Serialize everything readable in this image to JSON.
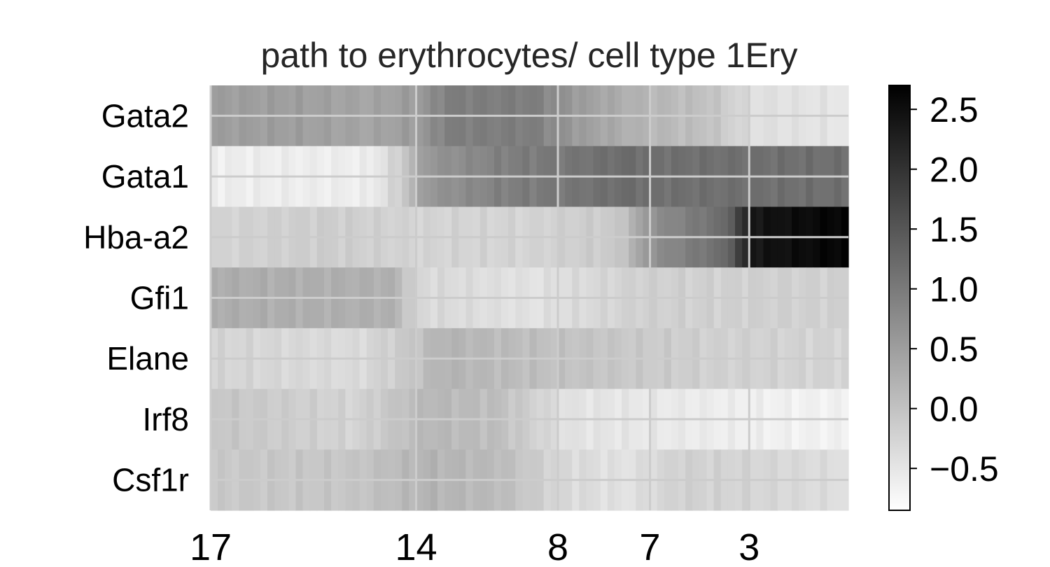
{
  "chart_data": {
    "type": "heatmap",
    "title": "path to erythrocytes/ cell type 1Ery",
    "colormap": [
      "#ffffff",
      "#000000"
    ],
    "vmin": -0.85,
    "vmax": 2.7,
    "genes": [
      "Gata2",
      "Gata1",
      "Hba-a2",
      "Gfi1",
      "Elane",
      "Irf8",
      "Csf1r"
    ],
    "x_ticks": [
      "17",
      "14",
      "8",
      "7",
      "3"
    ],
    "x_tick_positions": [
      0,
      29,
      49,
      62,
      76
    ],
    "n_columns": 90,
    "profiles": [
      [
        [
          0,
          0.5
        ],
        [
          10,
          0.5
        ],
        [
          22,
          0.4
        ],
        [
          29,
          0.55
        ],
        [
          33,
          0.95
        ],
        [
          45,
          0.95
        ],
        [
          52,
          0.5
        ],
        [
          60,
          0.2
        ],
        [
          70,
          0.0
        ],
        [
          76,
          -0.4
        ],
        [
          89,
          -0.5
        ]
      ],
      [
        [
          0,
          -0.6
        ],
        [
          22,
          -0.6
        ],
        [
          26,
          -0.2
        ],
        [
          30,
          0.6
        ],
        [
          42,
          0.95
        ],
        [
          50,
          1.05
        ],
        [
          58,
          1.2
        ],
        [
          62,
          1.15
        ],
        [
          70,
          1.15
        ],
        [
          89,
          1.15
        ]
      ],
      [
        [
          0,
          -0.25
        ],
        [
          15,
          -0.15
        ],
        [
          29,
          -0.25
        ],
        [
          45,
          -0.25
        ],
        [
          57,
          -0.1
        ],
        [
          62,
          0.7
        ],
        [
          72,
          1.2
        ],
        [
          76,
          2.4
        ],
        [
          89,
          2.65
        ]
      ],
      [
        [
          0,
          0.3
        ],
        [
          25,
          0.25
        ],
        [
          29,
          -0.3
        ],
        [
          45,
          -0.45
        ],
        [
          60,
          -0.2
        ],
        [
          89,
          -0.2
        ]
      ],
      [
        [
          0,
          -0.25
        ],
        [
          20,
          -0.35
        ],
        [
          27,
          -0.1
        ],
        [
          32,
          0.2
        ],
        [
          45,
          0.05
        ],
        [
          55,
          -0.05
        ],
        [
          70,
          -0.2
        ],
        [
          89,
          -0.25
        ]
      ],
      [
        [
          0,
          -0.05
        ],
        [
          20,
          -0.25
        ],
        [
          30,
          0.15
        ],
        [
          40,
          0.05
        ],
        [
          50,
          -0.45
        ],
        [
          65,
          -0.55
        ],
        [
          80,
          -0.65
        ],
        [
          89,
          -0.65
        ]
      ],
      [
        [
          0,
          -0.1
        ],
        [
          20,
          -0.05
        ],
        [
          30,
          0.2
        ],
        [
          40,
          0.1
        ],
        [
          49,
          -0.3
        ],
        [
          58,
          -0.45
        ],
        [
          66,
          -0.2
        ],
        [
          80,
          -0.3
        ],
        [
          89,
          -0.4
        ]
      ]
    ],
    "colorbar_ticks": [
      "2.5",
      "2.0",
      "1.5",
      "1.0",
      "0.5",
      "0.0",
      "−0.5"
    ],
    "colorbar_tick_values": [
      2.5,
      2.0,
      1.5,
      1.0,
      0.5,
      0.0,
      -0.5
    ],
    "grid": true,
    "grid_color": "#cccccc",
    "legend": "colorbar-right"
  }
}
